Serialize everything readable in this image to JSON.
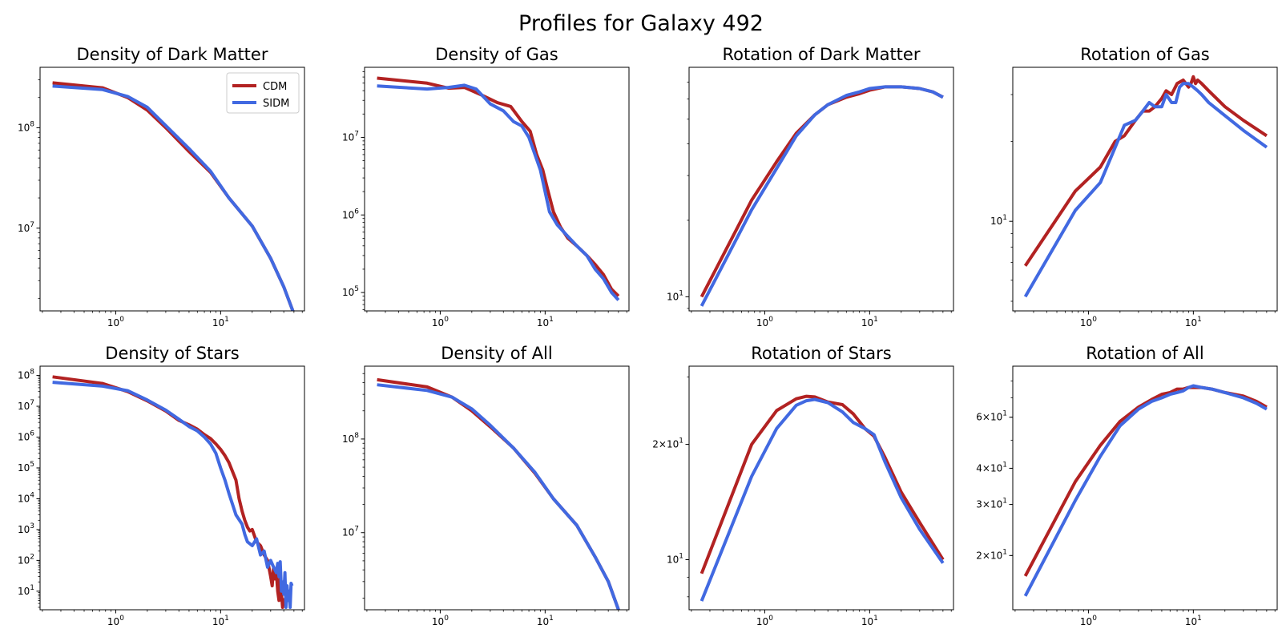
{
  "figure": {
    "title": "Profiles for Galaxy 492"
  },
  "colors": {
    "CDM": "#b22222",
    "SIDM": "#4169e1"
  },
  "legend": {
    "location": "upper-right",
    "panel_index": 0,
    "entries": [
      "CDM",
      "SIDM"
    ]
  },
  "chart_data": [
    {
      "type": "line",
      "title": "Density of Dark Matter",
      "xscale": "log",
      "yscale": "log",
      "xlim": [
        0.19,
        63
      ],
      "ylim": [
        1500000.0,
        400000000.0
      ],
      "xticks": [
        {
          "value": 1,
          "label": "10^0"
        },
        {
          "value": 10,
          "label": "10^1"
        }
      ],
      "yticks": [
        {
          "value": 10000000.0,
          "label": "10^7"
        },
        {
          "value": 100000000.0,
          "label": "10^8"
        }
      ],
      "series": [
        {
          "name": "CDM",
          "x": [
            0.25,
            0.75,
            1.3,
            2,
            3,
            5,
            8,
            12,
            20,
            30,
            40,
            50
          ],
          "y": [
            280000000.0,
            250000000.0,
            200000000.0,
            150000000.0,
            100000000.0,
            58000000.0,
            36000000.0,
            20000000.0,
            10500000.0,
            5000000.0,
            2600000.0,
            1400000.0
          ]
        },
        {
          "name": "SIDM",
          "x": [
            0.25,
            0.75,
            1.3,
            2,
            3,
            5,
            8,
            12,
            20,
            30,
            40,
            50
          ],
          "y": [
            260000000.0,
            240000000.0,
            205000000.0,
            160000000.0,
            105000000.0,
            62000000.0,
            37000000.0,
            20000000.0,
            10500000.0,
            5000000.0,
            2600000.0,
            1400000.0
          ]
        }
      ]
    },
    {
      "type": "line",
      "title": "Density of Gas",
      "xscale": "log",
      "yscale": "log",
      "xlim": [
        0.19,
        63
      ],
      "ylim": [
        58000.0,
        80000000.0
      ],
      "xticks": [
        {
          "value": 1,
          "label": "10^0"
        },
        {
          "value": 10,
          "label": "10^1"
        }
      ],
      "yticks": [
        {
          "value": 100000.0,
          "label": "10^5"
        },
        {
          "value": 1000000.0,
          "label": "10^6"
        },
        {
          "value": 10000000.0,
          "label": "10^7"
        }
      ],
      "series": [
        {
          "name": "CDM",
          "x": [
            0.25,
            0.75,
            1.2,
            1.7,
            2.5,
            3.5,
            4.7,
            6,
            7.2,
            8.3,
            9.5,
            10.5,
            12,
            14,
            16.5,
            20,
            25,
            30,
            36,
            43,
            50
          ],
          "y": [
            58000000.0,
            50000000.0,
            43000000.0,
            44000000.0,
            35000000.0,
            28000000.0,
            25000000.0,
            16000000.0,
            12000000.0,
            6000000.0,
            3800000.0,
            2200000.0,
            1100000.0,
            700000.0,
            500000.0,
            400000.0,
            300000.0,
            230000.0,
            170000.0,
            110000.0,
            90000.0
          ]
        },
        {
          "name": "SIDM",
          "x": [
            0.25,
            0.75,
            1.2,
            1.7,
            2.2,
            3,
            4,
            5,
            6,
            7,
            8,
            9,
            10,
            11,
            13,
            16,
            20,
            25,
            30,
            36,
            43,
            50
          ],
          "y": [
            46000000.0,
            42000000.0,
            44000000.0,
            47000000.0,
            42000000.0,
            27000000.0,
            22000000.0,
            16000000.0,
            14000000.0,
            10000000.0,
            6000000.0,
            3800000.0,
            2000000.0,
            1100000.0,
            750000.0,
            550000.0,
            400000.0,
            300000.0,
            200000.0,
            150000.0,
            100000.0,
            80000.0
          ]
        }
      ]
    },
    {
      "type": "line",
      "title": "Rotation of Dark Matter",
      "xscale": "log",
      "yscale": "log",
      "xlim": [
        0.19,
        63
      ],
      "ylim": [
        8.8,
        80
      ],
      "xticks": [
        {
          "value": 1,
          "label": "10^0"
        },
        {
          "value": 10,
          "label": "10^1"
        }
      ],
      "yticks": [
        {
          "value": 10,
          "label": "10^1"
        }
      ],
      "series": [
        {
          "name": "CDM",
          "x": [
            0.25,
            0.75,
            1.3,
            2,
            3,
            4,
            6,
            8,
            10,
            14,
            20,
            30,
            40,
            50
          ],
          "y": [
            10,
            24,
            34,
            44,
            52,
            57,
            61,
            63,
            65,
            67,
            67,
            66,
            64,
            61
          ]
        },
        {
          "name": "SIDM",
          "x": [
            0.25,
            0.75,
            1.3,
            2,
            3,
            4,
            6,
            8,
            10,
            14,
            20,
            30,
            40,
            50
          ],
          "y": [
            9.2,
            22,
            32,
            43,
            52,
            57,
            62,
            64,
            66,
            67,
            67,
            66,
            64,
            61
          ]
        }
      ]
    },
    {
      "type": "line",
      "title": "Rotation of Gas",
      "xscale": "log",
      "yscale": "log",
      "xlim": [
        0.19,
        63
      ],
      "ylim": [
        4.6,
        38
      ],
      "xticks": [
        {
          "value": 1,
          "label": "10^0"
        },
        {
          "value": 10,
          "label": "10^1"
        }
      ],
      "yticks": [
        {
          "value": 10,
          "label": "10^1"
        }
      ],
      "series": [
        {
          "name": "CDM",
          "x": [
            0.25,
            0.75,
            1.3,
            1.8,
            2.2,
            2.8,
            3.3,
            3.8,
            4.3,
            5,
            5.5,
            6.2,
            7,
            8,
            9,
            9.5,
            10,
            10.5,
            11,
            12,
            14,
            20,
            30,
            50
          ],
          "y": [
            6.8,
            13,
            16,
            20,
            21,
            24,
            26,
            26,
            27,
            29,
            31,
            30,
            33,
            34,
            32,
            33,
            35,
            33,
            34,
            33,
            31,
            27,
            24,
            21
          ]
        },
        {
          "name": "SIDM",
          "x": [
            0.25,
            0.75,
            1.3,
            1.8,
            2.2,
            2.8,
            3.3,
            3.8,
            4.3,
            5,
            5.5,
            6.2,
            6.8,
            7.4,
            8,
            9,
            10,
            11,
            12,
            14,
            20,
            30,
            50
          ],
          "y": [
            5.2,
            11,
            14,
            19,
            23,
            24,
            26,
            28,
            27,
            27,
            30,
            28,
            28,
            32,
            33,
            33,
            32,
            31,
            30,
            28,
            25,
            22,
            19
          ]
        }
      ]
    },
    {
      "type": "line",
      "title": "Density of Stars",
      "xscale": "log",
      "yscale": "log",
      "xlim": [
        0.19,
        63
      ],
      "ylim": [
        2.5,
        200000000.0
      ],
      "xticks": [
        {
          "value": 1,
          "label": "10^0"
        },
        {
          "value": 10,
          "label": "10^1"
        }
      ],
      "yticks": [
        {
          "value": 10,
          "label": "10^1"
        },
        {
          "value": 100,
          "label": "10^2"
        },
        {
          "value": 1000.0,
          "label": "10^3"
        },
        {
          "value": 10000.0,
          "label": "10^4"
        },
        {
          "value": 100000.0,
          "label": "10^5"
        },
        {
          "value": 1000000.0,
          "label": "10^6"
        },
        {
          "value": 10000000.0,
          "label": "10^7"
        },
        {
          "value": 100000000.0,
          "label": "10^8"
        }
      ],
      "series": [
        {
          "name": "CDM",
          "x": [
            0.25,
            0.75,
            1.3,
            2,
            3,
            4,
            5,
            6,
            7,
            8,
            9,
            10,
            11,
            12,
            14,
            15,
            16,
            17,
            18,
            19,
            20,
            22,
            24,
            26,
            28,
            30,
            31,
            32,
            33,
            34,
            35,
            36,
            37,
            38,
            39,
            40
          ],
          "y": [
            90000000.0,
            55000000.0,
            30000000.0,
            15000000.0,
            7000000.0,
            3500000.0,
            2500000.0,
            1800000.0,
            1200000.0,
            900000.0,
            600000.0,
            400000.0,
            250000.0,
            150000.0,
            40000.0,
            10000.0,
            4000.0,
            2000.0,
            1200.0,
            900,
            1000,
            400,
            300,
            150,
            100,
            30,
            15,
            60,
            25,
            40,
            10,
            5,
            30,
            8,
            3,
            6
          ]
        },
        {
          "name": "SIDM",
          "x": [
            0.25,
            0.75,
            1.3,
            2,
            3,
            4,
            5,
            6,
            7,
            8,
            9,
            10,
            11,
            12,
            14,
            16,
            17,
            18,
            20,
            22,
            24,
            26,
            28,
            30,
            32,
            34,
            35,
            36,
            37,
            38,
            39,
            40,
            41,
            42,
            43,
            44,
            45,
            46,
            47,
            48
          ],
          "y": [
            60000000.0,
            45000000.0,
            32000000.0,
            16000000.0,
            7500000.0,
            3800000.0,
            2200000.0,
            1600000.0,
            1000000.0,
            600000.0,
            300000.0,
            100000.0,
            40000.0,
            15000.0,
            3000.0,
            1500.0,
            700,
            400,
            300,
            500,
            150,
            200,
            60,
            100,
            60,
            40,
            80,
            30,
            90,
            10,
            20,
            8,
            40,
            3,
            15,
            5,
            10,
            3,
            18,
            15
          ]
        }
      ]
    },
    {
      "type": "line",
      "title": "Density of All",
      "xscale": "log",
      "yscale": "log",
      "xlim": [
        0.19,
        63
      ],
      "ylim": [
        1500000.0,
        600000000.0
      ],
      "xticks": [
        {
          "value": 1,
          "label": "10^0"
        },
        {
          "value": 10,
          "label": "10^1"
        }
      ],
      "yticks": [
        {
          "value": 10000000.0,
          "label": "10^7"
        },
        {
          "value": 100000000.0,
          "label": "10^8"
        }
      ],
      "series": [
        {
          "name": "CDM",
          "x": [
            0.25,
            0.75,
            1.3,
            2,
            3,
            5,
            8,
            12,
            20,
            30,
            40,
            50
          ],
          "y": [
            430000000.0,
            360000000.0,
            280000000.0,
            200000000.0,
            135000000.0,
            80000000.0,
            43000000.0,
            23000000.0,
            12000000.0,
            5500000.0,
            3000000.0,
            1500000.0
          ]
        },
        {
          "name": "SIDM",
          "x": [
            0.25,
            0.75,
            1.3,
            2,
            3,
            5,
            8,
            12,
            20,
            30,
            40,
            50
          ],
          "y": [
            380000000.0,
            330000000.0,
            280000000.0,
            210000000.0,
            140000000.0,
            80000000.0,
            44000000.0,
            23000000.0,
            12000000.0,
            5500000.0,
            3000000.0,
            1500000.0
          ]
        }
      ]
    },
    {
      "type": "line",
      "title": "Rotation of Stars",
      "xscale": "log",
      "yscale": "log",
      "xlim": [
        0.19,
        63
      ],
      "ylim": [
        7.4,
        32
      ],
      "xticks": [
        {
          "value": 1,
          "label": "10^0"
        },
        {
          "value": 10,
          "label": "10^1"
        }
      ],
      "yticks": [
        {
          "value": 10,
          "label": "10^1"
        },
        {
          "value": 20,
          "label": "2×10^1"
        }
      ],
      "series": [
        {
          "name": "CDM",
          "x": [
            0.25,
            0.75,
            1.3,
            2,
            2.5,
            3,
            4,
            5.5,
            7,
            9,
            11,
            14,
            20,
            30,
            50
          ],
          "y": [
            9.2,
            20,
            24.5,
            26.3,
            26.7,
            26.6,
            25.8,
            25.4,
            24,
            22,
            21,
            18.5,
            15,
            12.5,
            10
          ]
        },
        {
          "name": "SIDM",
          "x": [
            0.25,
            0.75,
            1.3,
            2,
            2.5,
            3,
            4,
            5.5,
            7,
            9,
            11,
            14,
            20,
            30,
            50
          ],
          "y": [
            7.8,
            16.5,
            22,
            25.3,
            26,
            26.2,
            25.7,
            24.3,
            22.8,
            22,
            21.2,
            18,
            14.5,
            12,
            9.8
          ]
        }
      ]
    },
    {
      "type": "line",
      "title": "Rotation of All",
      "xscale": "log",
      "yscale": "log",
      "xlim": [
        0.19,
        63
      ],
      "ylim": [
        13,
        90
      ],
      "xticks": [
        {
          "value": 1,
          "label": "10^0"
        },
        {
          "value": 10,
          "label": "10^1"
        }
      ],
      "yticks": [
        {
          "value": 20,
          "label": "2×10^1"
        },
        {
          "value": 30,
          "label": "3×10^1"
        },
        {
          "value": 40,
          "label": "4×10^1"
        },
        {
          "value": 60,
          "label": "6×10^1"
        }
      ],
      "series": [
        {
          "name": "CDM",
          "x": [
            0.25,
            0.75,
            1.3,
            2,
            3,
            4,
            5,
            6,
            7,
            8,
            9,
            10,
            12,
            15,
            20,
            30,
            40,
            50
          ],
          "y": [
            17,
            36,
            48,
            58,
            65,
            69,
            72,
            73,
            75,
            75,
            76,
            76,
            76,
            75,
            73,
            71,
            68,
            65
          ]
        },
        {
          "name": "SIDM",
          "x": [
            0.25,
            0.75,
            1.3,
            2,
            3,
            4,
            5,
            6,
            7,
            8,
            9,
            10,
            12,
            15,
            20,
            30,
            40,
            50
          ],
          "y": [
            14.5,
            31,
            44,
            56,
            64,
            68,
            70,
            72,
            73,
            74,
            76,
            77,
            76,
            75,
            73,
            70,
            67,
            64
          ]
        }
      ]
    }
  ]
}
